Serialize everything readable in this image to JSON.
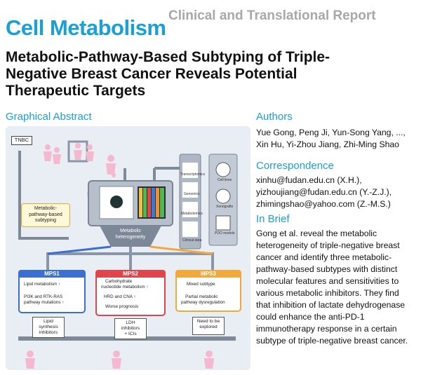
{
  "header": {
    "journal": "Cell Metabolism",
    "article_type": "Clinical and Translational Report"
  },
  "article": {
    "title_line1": "Metabolic-Pathway-Based Subtyping of Triple-",
    "title_line2": "Negative Breast Cancer Reveals Potential",
    "title_line3": "Therapeutic Targets"
  },
  "graphical_abstract": {
    "heading": "Graphical Abstract",
    "tnbc": "TNBC",
    "subtyping_line1": "Metabolic-",
    "subtyping_line2": "pathway-based",
    "subtyping_line3": "subtyping",
    "heterogeneity_line1": "Metabolic",
    "heterogeneity_line2": "heterogeneity",
    "omics": [
      "Transcriptomics",
      "Genomics",
      "Metabolomics",
      "Clinical data"
    ],
    "models": [
      "Cell lines",
      "Xenografts",
      "PDO models"
    ],
    "mps": [
      {
        "name": "MPS1",
        "color": "#3b6fd0",
        "items": [
          "Lipid metabolism ↑",
          "PI3K and RTK-RAS",
          "pathway mutations ↑"
        ],
        "bottom": [
          "Lipid",
          "synthesis",
          "inhibitors"
        ]
      },
      {
        "name": "MPS2",
        "color": "#e0454c",
        "items": [
          "Carbohydrate",
          "nucleotide metabolism ↑",
          "HRD and CNA ↑",
          "Worse prognosis"
        ],
        "bottom": [
          "LDH",
          "inhibitors",
          "+ ICIs"
        ]
      },
      {
        "name": "MPS3",
        "color": "#f2a93b",
        "items": [
          "Mixed subtype",
          "Partial metabolic",
          "pathway dysregulation"
        ],
        "bottom": [
          "Need to be",
          "explored"
        ]
      }
    ]
  },
  "authors": {
    "heading": "Authors",
    "line1": "Yue Gong, Peng Ji, Yun-Song Yang, ...,",
    "line2": "Xin Hu, Yi-Zhou Jiang, Zhi-Ming Shao"
  },
  "correspondence": {
    "heading": "Correspondence",
    "line1": "xinhu@fudan.edu.cn (X.H.),",
    "line2": "yizhoujiang@fudan.edu.cn (Y.-Z.J.),",
    "line3": "zhimingshao@yahoo.com (Z.-M.S.)"
  },
  "in_brief": {
    "heading": "In Brief",
    "lines": [
      "Gong et al. reveal the metabolic",
      "heterogeneity of triple-negative breast",
      "cancer and identify three metabolic-",
      "pathway-based subtypes with distinct",
      "molecular features and sensitivities to",
      "various metabolic inhibitors. They find",
      "that inhibition of lactate dehydrogenase",
      "could enhance the anti-PD-1",
      "immunotherapy response in a certain",
      "subtype of triple-negative breast cancer."
    ]
  }
}
